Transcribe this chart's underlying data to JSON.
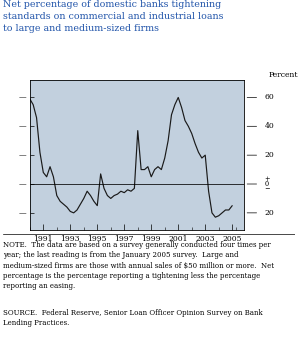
{
  "title": "Net percentage of domestic banks tightening\nstandards on commercial and industrial loans\nto large and medium-sized firms",
  "ylabel": "Percent",
  "bg_color": "#c2d0de",
  "line_color": "#1a1a1a",
  "title_color": "#2255aa",
  "xlim": [
    1990.0,
    2005.9
  ],
  "ylim": [
    -32,
    72
  ],
  "yticks": [
    -20,
    0,
    20,
    40,
    60
  ],
  "xticks": [
    1991,
    1993,
    1995,
    1997,
    1999,
    2001,
    2003,
    2005
  ],
  "minor_xticks": [
    1990,
    1991,
    1992,
    1993,
    1994,
    1995,
    1996,
    1997,
    1998,
    1999,
    2000,
    2001,
    2002,
    2003,
    2004,
    2005,
    2005.25
  ],
  "x": [
    1990.0,
    1990.25,
    1990.5,
    1990.75,
    1991.0,
    1991.25,
    1991.5,
    1991.75,
    1992.0,
    1992.25,
    1992.5,
    1992.75,
    1993.0,
    1993.25,
    1993.5,
    1993.75,
    1994.0,
    1994.25,
    1994.5,
    1994.75,
    1995.0,
    1995.25,
    1995.5,
    1995.75,
    1996.0,
    1996.25,
    1996.5,
    1996.75,
    1997.0,
    1997.25,
    1997.5,
    1997.75,
    1998.0,
    1998.25,
    1998.5,
    1998.75,
    1999.0,
    1999.25,
    1999.5,
    1999.75,
    2000.0,
    2000.25,
    2000.5,
    2000.75,
    2001.0,
    2001.25,
    2001.5,
    2001.75,
    2002.0,
    2002.25,
    2002.5,
    2002.75,
    2003.0,
    2003.25,
    2003.5,
    2003.75,
    2004.0,
    2004.25,
    2004.5,
    2004.75,
    2005.0
  ],
  "y": [
    59,
    55,
    46,
    22,
    8,
    5,
    12,
    5,
    -8,
    -12,
    -14,
    -16,
    -19,
    -20,
    -18,
    -14,
    -10,
    -5,
    -8,
    -12,
    -15,
    7,
    -3,
    -8,
    -10,
    -8,
    -7,
    -5,
    -6,
    -4,
    -5,
    -3,
    37,
    10,
    10,
    12,
    5,
    10,
    12,
    10,
    18,
    30,
    48,
    55,
    60,
    53,
    44,
    40,
    35,
    28,
    22,
    18,
    20,
    -5,
    -20,
    -23,
    -22,
    -20,
    -18,
    -18,
    -15
  ],
  "note_text": "NOTE.  The data are based on a survey generally conducted four times per\nyear; the last reading is from the January 2005 survey.  Large and\nmedium-sized firms are those with annual sales of $50 million or more.  Net\npercentage is the percentage reporting a tightening less the percentage\nreporting an easing.",
  "source_text": "SOURCE.  Federal Reserve, Senior Loan Officer Opinion Survey on Bank\nLending Practices."
}
